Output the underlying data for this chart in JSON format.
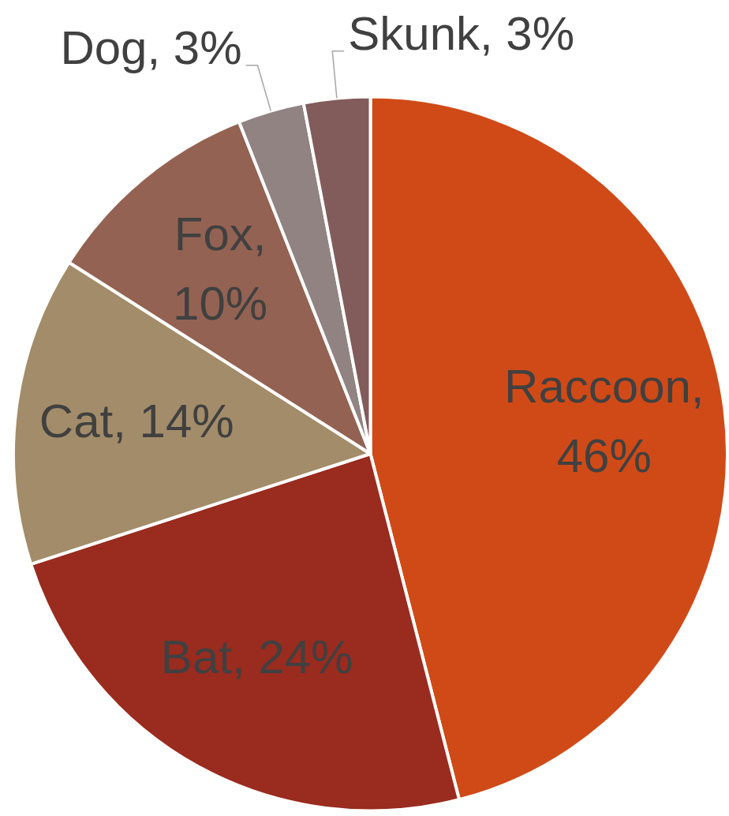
{
  "chart_data": {
    "type": "pie",
    "categories": [
      "Raccoon, 46%",
      "Bat, 24%",
      "Cat, 14%",
      "Fox, 10%",
      "Dog, 3%",
      "Skunk, 3%"
    ],
    "values": [
      46,
      24,
      14,
      10,
      3,
      3
    ],
    "colors": [
      "#d04a17",
      "#9a2b1f",
      "#a38c69",
      "#946252",
      "#918382",
      "#825c5a"
    ],
    "legend": false
  }
}
